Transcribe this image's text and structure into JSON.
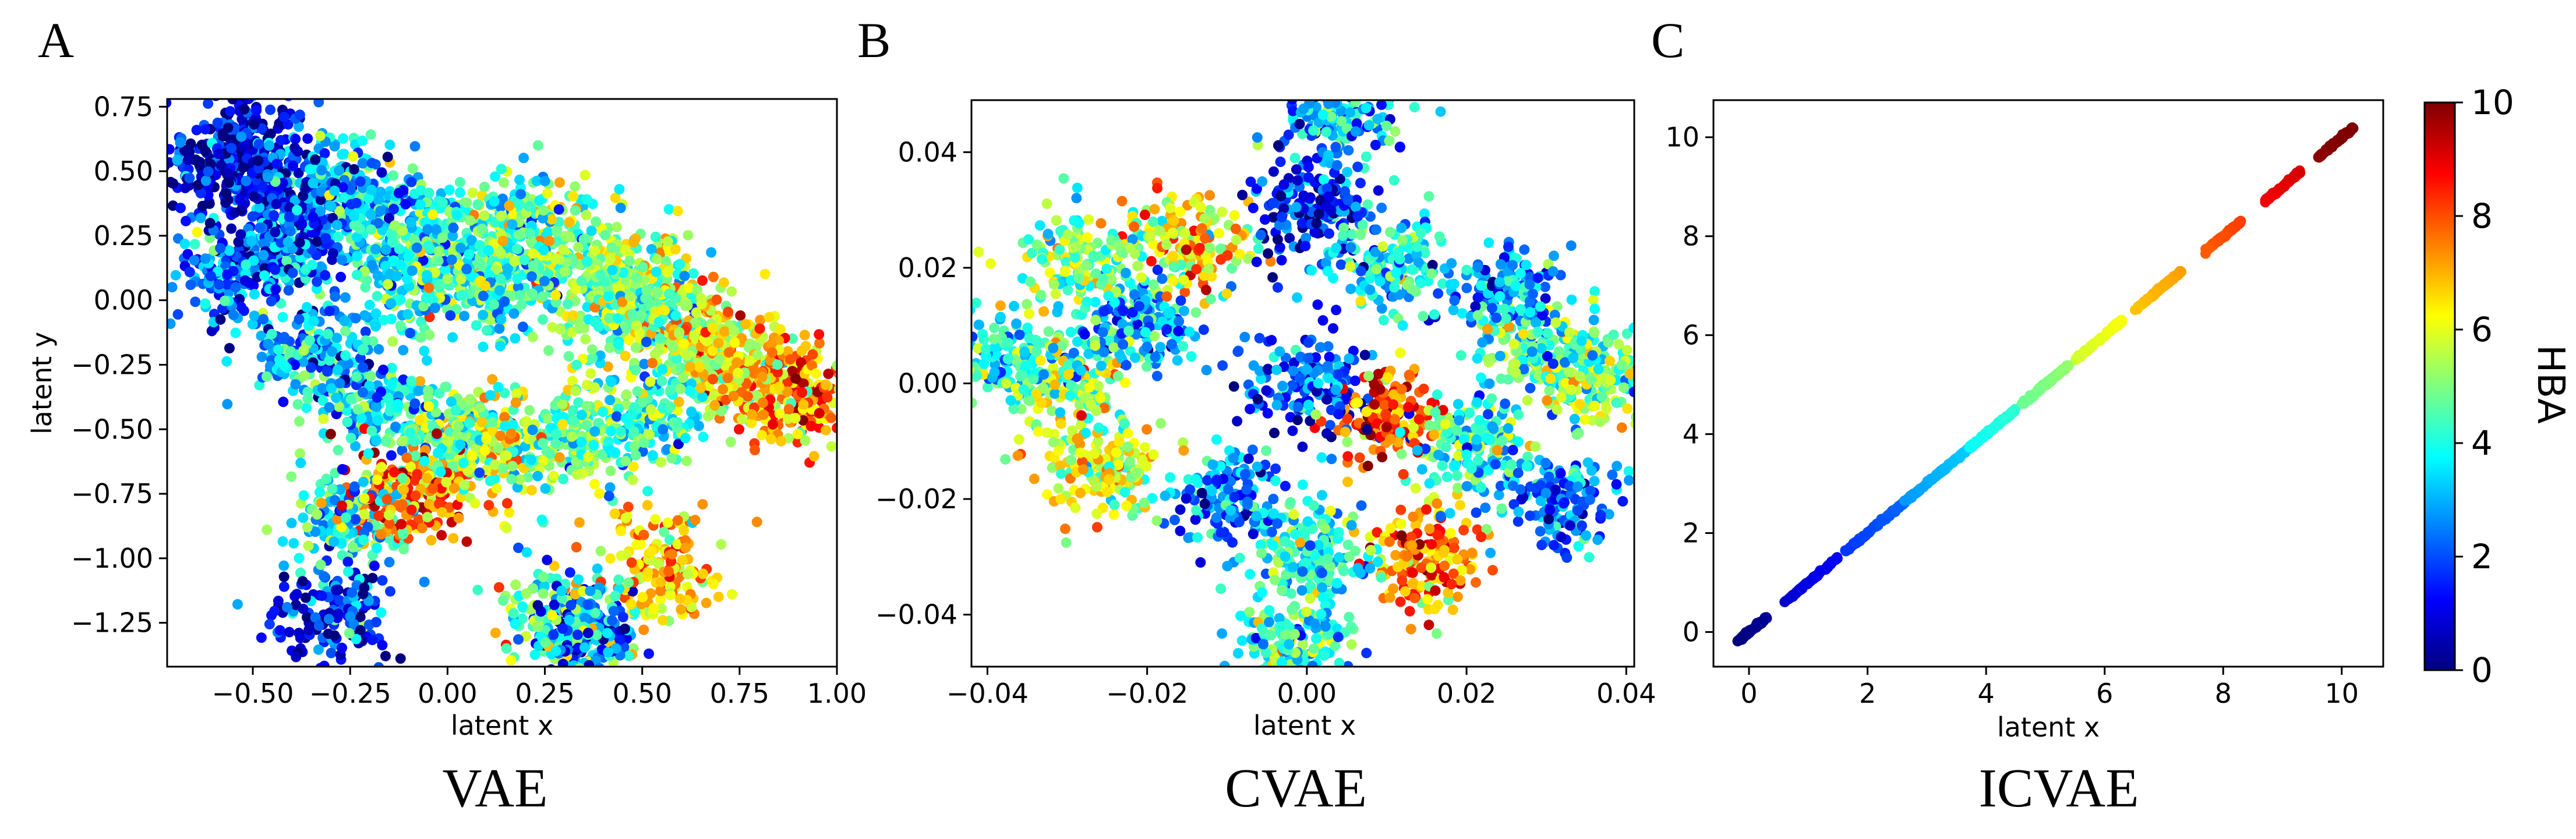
{
  "figure": {
    "colorbar": {
      "label": "HBA",
      "range": [
        0,
        10
      ],
      "ticks": [
        "0",
        "2",
        "4",
        "6",
        "8",
        "10"
      ],
      "colormap": [
        "#00007f",
        "#0000ff",
        "#007fff",
        "#00ffff",
        "#7fff7f",
        "#ffff00",
        "#ff7f00",
        "#ff0000",
        "#7f0000"
      ]
    }
  },
  "chart_data": [
    {
      "panel_letter": "A",
      "caption": "VAE",
      "type": "scatter",
      "xlabel": "latent x",
      "ylabel": "latent y",
      "xlim": [
        -0.72,
        1.0
      ],
      "ylim": [
        -1.42,
        0.78
      ],
      "xticks": [
        -0.5,
        -0.25,
        0.0,
        0.25,
        0.5,
        0.75,
        1.0
      ],
      "xtick_labels": [
        "−0.50",
        "−0.25",
        "0.00",
        "0.25",
        "0.50",
        "0.75",
        "1.00"
      ],
      "yticks": [
        0.75,
        0.5,
        0.25,
        0.0,
        -0.25,
        -0.5,
        -0.75,
        -1.0,
        -1.25
      ],
      "ytick_labels": [
        "0.75",
        "0.50",
        "0.25",
        "0.00",
        "−0.25",
        "−0.50",
        "−0.75",
        "−1.00",
        "−1.25"
      ],
      "color_by": "HBA",
      "points": [
        [
          -0.58,
          0.52,
          1.0
        ],
        [
          -0.5,
          0.62,
          0.8
        ],
        [
          -0.45,
          0.4,
          1.5
        ],
        [
          -0.55,
          0.1,
          2.2
        ],
        [
          -0.4,
          0.2,
          2.5
        ],
        [
          -0.3,
          0.45,
          3.0
        ],
        [
          -0.2,
          0.35,
          3.5
        ],
        [
          -0.1,
          0.1,
          3.8
        ],
        [
          0.0,
          0.25,
          4.2
        ],
        [
          0.1,
          0.05,
          4.0
        ],
        [
          0.2,
          0.3,
          4.5
        ],
        [
          0.3,
          0.15,
          5.0
        ],
        [
          0.4,
          -0.05,
          4.8
        ],
        [
          0.5,
          0.1,
          5.2
        ],
        [
          0.6,
          -0.1,
          5.5
        ],
        [
          0.7,
          -0.2,
          6.0
        ],
        [
          0.8,
          -0.3,
          6.5
        ],
        [
          0.9,
          -0.38,
          7.5
        ],
        [
          -0.35,
          -0.2,
          3.2
        ],
        [
          -0.2,
          -0.4,
          3.6
        ],
        [
          0.0,
          -0.5,
          4.4
        ],
        [
          0.1,
          -0.6,
          6.2
        ],
        [
          0.3,
          -0.55,
          4.6
        ],
        [
          0.5,
          -0.45,
          4.2
        ],
        [
          -0.1,
          -0.75,
          7.8
        ],
        [
          -0.25,
          -0.85,
          4.0
        ],
        [
          0.3,
          -1.22,
          4.5
        ],
        [
          0.35,
          -1.32,
          2.0
        ],
        [
          -0.3,
          -1.2,
          1.5
        ],
        [
          0.55,
          -1.05,
          7.0
        ]
      ]
    },
    {
      "panel_letter": "B",
      "caption": "CVAE",
      "type": "scatter",
      "xlabel": "latent x",
      "ylabel": "",
      "xlim": [
        -0.042,
        0.041
      ],
      "ylim": [
        -0.049,
        0.049
      ],
      "xticks": [
        -0.04,
        -0.02,
        0.0,
        0.02,
        0.04
      ],
      "xtick_labels": [
        "−0.04",
        "−0.02",
        "0.00",
        "0.02",
        "0.04"
      ],
      "yticks": [
        0.04,
        0.02,
        0.0,
        -0.02,
        -0.04
      ],
      "ytick_labels": [
        "0.04",
        "0.02",
        "0.00",
        "−0.02",
        "−0.04"
      ],
      "color_by": "HBA",
      "points": [
        [
          0.0,
          0.0,
          2.0
        ],
        [
          -0.02,
          0.01,
          3.0
        ],
        [
          0.02,
          -0.01,
          4.0
        ],
        [
          -0.01,
          -0.02,
          2.5
        ],
        [
          0.01,
          0.02,
          3.5
        ],
        [
          -0.03,
          0.0,
          5.0
        ],
        [
          0.03,
          0.005,
          4.5
        ],
        [
          0.0,
          0.03,
          1.5
        ],
        [
          0.0,
          -0.03,
          3.8
        ],
        [
          -0.025,
          -0.015,
          6.0
        ],
        [
          0.025,
          0.015,
          2.8
        ],
        [
          0.004,
          0.045,
          3.0
        ],
        [
          -0.002,
          -0.044,
          4.2
        ],
        [
          0.037,
          0.0,
          5.5
        ],
        [
          -0.037,
          0.004,
          4.0
        ],
        [
          0.015,
          -0.03,
          7.5
        ],
        [
          -0.015,
          0.025,
          6.5
        ],
        [
          0.032,
          -0.02,
          2.2
        ],
        [
          -0.028,
          0.022,
          4.8
        ],
        [
          0.01,
          -0.005,
          8.0
        ]
      ]
    },
    {
      "panel_letter": "C",
      "caption": "ICVAE",
      "type": "scatter",
      "xlabel": "latent x",
      "ylabel": "",
      "xlim": [
        -0.6,
        10.7
      ],
      "ylim": [
        -0.7,
        10.75
      ],
      "xticks": [
        0,
        2,
        4,
        6,
        8,
        10
      ],
      "xtick_labels": [
        "0",
        "2",
        "4",
        "6",
        "8",
        "10"
      ],
      "yticks": [
        10,
        8,
        6,
        4,
        2,
        0
      ],
      "ytick_labels": [
        "10",
        "8",
        "6",
        "4",
        "2",
        "0"
      ],
      "color_by": "HBA",
      "segments": [
        {
          "x0": -0.2,
          "x1": 0.3,
          "hba": 0.1
        },
        {
          "x0": 0.6,
          "x1": 1.5,
          "hba": 1.0
        },
        {
          "x0": 1.6,
          "x1": 2.6,
          "hba": 2.0
        },
        {
          "x0": 2.6,
          "x1": 3.7,
          "hba": 3.0
        },
        {
          "x0": 3.7,
          "x1": 4.5,
          "hba": 4.0
        },
        {
          "x0": 4.6,
          "x1": 5.4,
          "hba": 5.0
        },
        {
          "x0": 5.5,
          "x1": 6.3,
          "hba": 6.0
        },
        {
          "x0": 6.5,
          "x1": 7.3,
          "hba": 7.0
        },
        {
          "x0": 7.7,
          "x1": 8.3,
          "hba": 8.0
        },
        {
          "x0": 8.7,
          "x1": 9.3,
          "hba": 9.0
        },
        {
          "x0": 9.6,
          "x1": 10.2,
          "hba": 10.0
        }
      ]
    }
  ]
}
